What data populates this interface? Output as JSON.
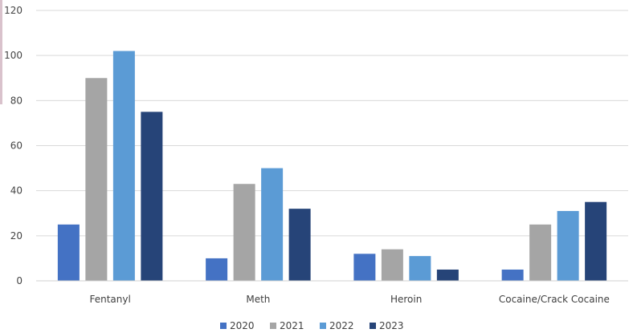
{
  "chart_data": {
    "type": "bar",
    "title": "",
    "xlabel": "",
    "ylabel": "",
    "categories": [
      "Fentanyl",
      "Meth",
      "Heroin",
      "Cocaine/Crack Cocaine"
    ],
    "series": [
      {
        "name": "2020",
        "color": "#4472c4",
        "values": [
          25,
          10,
          12,
          5
        ]
      },
      {
        "name": "2021",
        "color": "#a5a5a5",
        "values": [
          90,
          43,
          14,
          25
        ]
      },
      {
        "name": "2022",
        "color": "#5b9bd5",
        "values": [
          102,
          50,
          11,
          31
        ]
      },
      {
        "name": "2023",
        "color": "#264478",
        "values": [
          75,
          32,
          5,
          35
        ]
      }
    ],
    "ylim": [
      0,
      120
    ],
    "yticks": [
      0,
      20,
      40,
      60,
      80,
      100,
      120
    ],
    "grid": true,
    "legend": "bottom"
  }
}
